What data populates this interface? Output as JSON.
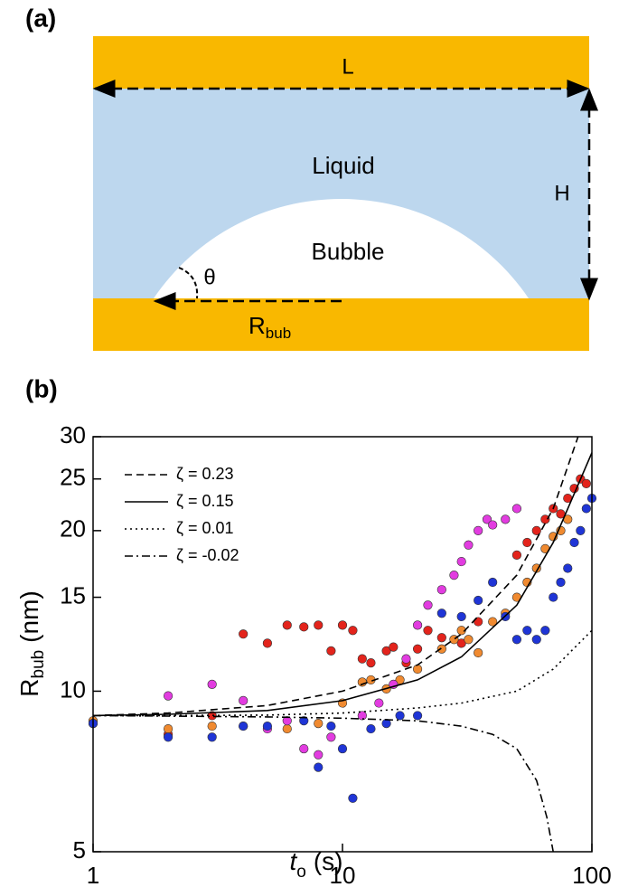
{
  "diagram": {
    "panel": "(a)",
    "length": "L",
    "liquid": "Liquid",
    "height": "H",
    "bubble": "Bubble",
    "angle": "θ",
    "radius": {
      "main": "R",
      "sub": "bub"
    }
  },
  "chart_data": {
    "type": "scatter",
    "panel": "(b)",
    "x_label": {
      "main": "t",
      "sub": "o",
      "unit": "(s)"
    },
    "y_label": {
      "main": "R",
      "sub": "bub",
      "unit": "(nm)"
    },
    "log_x": true,
    "log_y": true,
    "xlim": [
      1,
      100
    ],
    "xticks": [
      1,
      10,
      100
    ],
    "ylim": [
      5,
      30
    ],
    "yticks": [
      5,
      10,
      15,
      20,
      25,
      30
    ],
    "legend": "upper left",
    "points": [
      {
        "color": "#e3241c",
        "x": [
          2,
          3,
          4,
          5,
          6,
          7,
          8,
          9,
          10,
          11,
          12,
          13,
          15,
          16,
          18,
          20,
          22,
          25,
          30,
          35,
          50,
          55,
          60,
          65,
          70,
          75,
          80,
          85,
          90,
          95
        ],
        "y": [
          8.3,
          9,
          12.8,
          12.3,
          13.3,
          13.2,
          13.3,
          11.9,
          13.3,
          13,
          11.5,
          11.3,
          11.9,
          12.1,
          11.3,
          12,
          13,
          12.6,
          12.3,
          13.5,
          18,
          19,
          20,
          21,
          22,
          21.5,
          23,
          24,
          25,
          24.5
        ]
      },
      {
        "color": "#f08a30",
        "x": [
          1,
          2,
          3,
          4,
          6,
          8,
          10,
          12,
          13,
          15,
          17,
          20,
          25,
          28,
          30,
          32,
          35,
          40,
          45,
          50,
          55,
          60,
          65,
          70,
          75,
          80
        ],
        "y": [
          8.8,
          8.5,
          8.6,
          8.6,
          8.5,
          8.7,
          9.5,
          10.4,
          10.5,
          10.1,
          10.5,
          11,
          12,
          12.5,
          13,
          12.5,
          11.8,
          13.5,
          14,
          15,
          16,
          17,
          18.5,
          19.5,
          20,
          21
        ]
      },
      {
        "color": "#e23ce0",
        "x": [
          1,
          2,
          3,
          4,
          5,
          6,
          7,
          8,
          9,
          12,
          14,
          16,
          18,
          20,
          22,
          25,
          28,
          30,
          32,
          35,
          38,
          40,
          45,
          50
        ],
        "y": [
          8.7,
          9.8,
          10.3,
          9.6,
          8.5,
          8.8,
          7.8,
          7.6,
          8.2,
          9,
          9.5,
          10.3,
          11.5,
          13.3,
          14.5,
          15.5,
          16.5,
          17.5,
          18.8,
          20,
          21,
          20.5,
          21,
          22
        ]
      },
      {
        "color": "#1f35d6",
        "x": [
          1,
          2,
          3,
          4,
          5,
          7,
          8,
          9,
          10,
          11,
          13,
          15,
          17,
          20,
          25,
          30,
          35,
          40,
          45,
          50,
          55,
          60,
          65,
          70,
          75,
          80,
          85,
          90,
          95,
          100
        ],
        "y": [
          8.7,
          8.2,
          8.2,
          8.6,
          8.6,
          8.8,
          7.2,
          8.6,
          7.8,
          6.3,
          8.5,
          8.7,
          9,
          9,
          14,
          13.8,
          14.8,
          16,
          13.8,
          12.5,
          13,
          12.5,
          13,
          15,
          16,
          17,
          19,
          20,
          22,
          23
        ]
      }
    ],
    "curves": [
      {
        "name": "ζ = 0.23",
        "dash": "8 5",
        "x": [
          1,
          2,
          5,
          10,
          20,
          30,
          50,
          70,
          88
        ],
        "y": [
          9,
          9.1,
          9.4,
          10,
          11.2,
          12.8,
          16.5,
          22,
          30
        ]
      },
      {
        "name": "ζ = 0.15",
        "dash": "none",
        "x": [
          1,
          2,
          5,
          10,
          20,
          30,
          50,
          70,
          100
        ],
        "y": [
          9,
          9.05,
          9.2,
          9.6,
          10.5,
          11.6,
          14.5,
          19,
          28
        ]
      },
      {
        "name": "ζ = 0.01",
        "dash": "2 4",
        "x": [
          1,
          2,
          5,
          10,
          20,
          30,
          50,
          70,
          100
        ],
        "y": [
          9,
          9,
          9.02,
          9.1,
          9.3,
          9.5,
          10,
          11,
          13
        ]
      },
      {
        "name": "ζ = -0.02",
        "dash": "9 4 2 4",
        "x": [
          1,
          2,
          5,
          10,
          20,
          30,
          40,
          50,
          60,
          66,
          70
        ],
        "y": [
          9,
          8.98,
          8.95,
          8.9,
          8.8,
          8.6,
          8.3,
          7.8,
          6.8,
          5.8,
          5
        ]
      }
    ]
  }
}
